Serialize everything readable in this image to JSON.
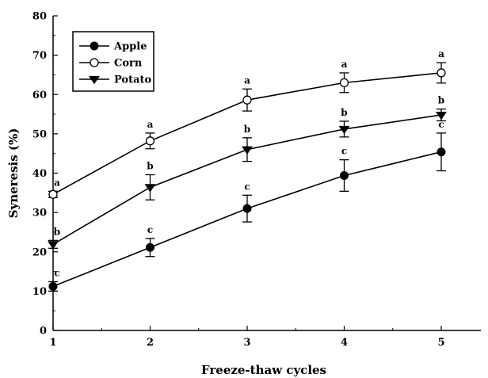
{
  "chart_data": {
    "type": "line",
    "title": "",
    "xlabel": "Freeze-thaw cycles",
    "ylabel": "Syneresis (%)",
    "x": [
      1,
      2,
      3,
      4,
      5
    ],
    "xlim": [
      1,
      5
    ],
    "ylim": [
      0,
      80
    ],
    "yticks": [
      0,
      10,
      20,
      30,
      40,
      50,
      60,
      70,
      80
    ],
    "xticks": [
      1,
      2,
      3,
      4,
      5
    ],
    "grid": false,
    "legend_position": "top-left",
    "series": [
      {
        "name": "Apple",
        "marker": "filled-circle",
        "values": [
          11.2,
          21.1,
          31.0,
          39.4,
          45.4
        ],
        "errors": [
          1.2,
          2.3,
          3.4,
          4.0,
          4.8
        ],
        "letters": [
          "c",
          "c",
          "c",
          "c",
          "c"
        ]
      },
      {
        "name": "Corn",
        "marker": "open-circle",
        "values": [
          34.6,
          48.2,
          58.6,
          63.0,
          65.5
        ],
        "errors": [
          0.8,
          2.0,
          2.8,
          2.5,
          2.6
        ],
        "letters": [
          "a",
          "a",
          "a",
          "a",
          "a"
        ]
      },
      {
        "name": "Potato",
        "marker": "filled-triangle-down",
        "values": [
          21.9,
          36.4,
          46.0,
          51.2,
          54.8
        ],
        "errors": [
          1.0,
          3.2,
          3.0,
          2.0,
          1.5
        ],
        "letters": [
          "b",
          "b",
          "b",
          "b",
          "b"
        ]
      }
    ]
  }
}
